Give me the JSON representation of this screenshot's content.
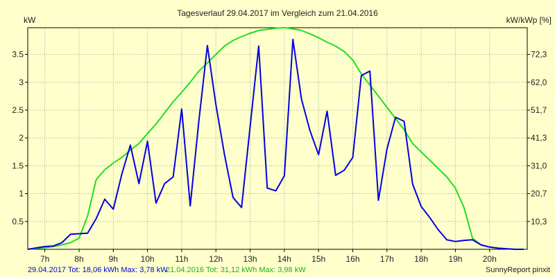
{
  "chart_data": {
    "type": "line",
    "title": "Tagesverlauf 29.04.2017 im Vergleich zum 21.04.2016",
    "ylabel_left": "kW",
    "ylabel_right": "kW/kWp [%]",
    "xlim": [
      6.5,
      21.1
    ],
    "ylim": [
      0,
      3.98
    ],
    "x_ticks": [
      7,
      8,
      9,
      10,
      11,
      12,
      13,
      14,
      15,
      16,
      17,
      18,
      19,
      20
    ],
    "x_tick_labels": [
      "7h",
      "8h",
      "9h",
      "10h",
      "11h",
      "12h",
      "13h",
      "14h",
      "15h",
      "16h",
      "17h",
      "18h",
      "19h",
      "20h"
    ],
    "y_ticks": [
      0.5,
      1,
      1.5,
      2,
      2.5,
      3,
      3.5
    ],
    "y_tick_labels": [
      "0.5",
      "1",
      "1.5",
      "2",
      "2.5",
      "3",
      "3.5"
    ],
    "y2_ticks": [
      0.5,
      1,
      1.5,
      2,
      2.5,
      3,
      3.5
    ],
    "y2_tick_labels": [
      "10,3",
      "20,7",
      "31,0",
      "41,3",
      "51,7",
      "62,0",
      "72,3"
    ],
    "grid": true,
    "series": [
      {
        "name": "29.04.2017",
        "color": "#0000e0",
        "x": [
          6.5,
          7.0,
          7.25,
          7.5,
          7.75,
          8.0,
          8.25,
          8.5,
          8.75,
          9.0,
          9.25,
          9.5,
          9.75,
          10.0,
          10.25,
          10.5,
          10.75,
          11.0,
          11.25,
          11.5,
          11.75,
          12.0,
          12.25,
          12.5,
          12.75,
          13.0,
          13.25,
          13.5,
          13.75,
          14.0,
          14.25,
          14.5,
          14.75,
          15.0,
          15.25,
          15.5,
          15.75,
          16.0,
          16.25,
          16.5,
          16.75,
          17.0,
          17.25,
          17.5,
          17.75,
          18.0,
          18.25,
          18.5,
          18.75,
          19.0,
          19.25,
          19.5,
          19.75,
          20.0,
          20.25,
          20.5,
          20.75,
          21.0
        ],
        "values": [
          0.0,
          0.05,
          0.06,
          0.12,
          0.27,
          0.28,
          0.29,
          0.55,
          0.9,
          0.72,
          1.35,
          1.87,
          1.18,
          1.94,
          0.83,
          1.18,
          1.3,
          2.52,
          0.78,
          2.3,
          3.66,
          2.6,
          1.7,
          0.93,
          0.75,
          2.2,
          3.65,
          1.1,
          1.05,
          1.32,
          3.77,
          2.7,
          2.13,
          1.7,
          2.48,
          1.33,
          1.42,
          1.65,
          3.12,
          3.2,
          0.88,
          1.8,
          2.37,
          2.3,
          1.17,
          0.77,
          0.57,
          0.35,
          0.17,
          0.14,
          0.16,
          0.17,
          0.08,
          0.04,
          0.02,
          0.01,
          0.0,
          0.0
        ]
      },
      {
        "name": "21.04.2016",
        "color": "#22dd22",
        "x": [
          6.5,
          7.0,
          7.25,
          7.5,
          7.75,
          8.0,
          8.25,
          8.5,
          8.75,
          9.0,
          9.25,
          9.5,
          9.75,
          10.0,
          10.25,
          10.5,
          10.75,
          11.0,
          11.25,
          11.5,
          11.75,
          12.0,
          12.25,
          12.5,
          12.75,
          13.0,
          13.25,
          13.5,
          13.75,
          14.0,
          14.25,
          14.5,
          14.75,
          15.0,
          15.25,
          15.5,
          15.75,
          16.0,
          16.25,
          16.5,
          16.75,
          17.0,
          17.25,
          17.5,
          17.75,
          18.0,
          18.25,
          18.5,
          18.75,
          19.0,
          19.25,
          19.5,
          19.75,
          20.0,
          20.25,
          20.5,
          20.75,
          21.0
        ],
        "values": [
          0.0,
          0.03,
          0.05,
          0.08,
          0.12,
          0.2,
          0.6,
          1.25,
          1.43,
          1.55,
          1.65,
          1.78,
          1.9,
          2.08,
          2.25,
          2.45,
          2.65,
          2.82,
          3.0,
          3.2,
          3.35,
          3.5,
          3.65,
          3.75,
          3.82,
          3.88,
          3.93,
          3.95,
          3.97,
          3.98,
          3.96,
          3.93,
          3.87,
          3.8,
          3.72,
          3.65,
          3.55,
          3.4,
          3.15,
          2.95,
          2.75,
          2.55,
          2.35,
          2.15,
          1.9,
          1.75,
          1.6,
          1.45,
          1.3,
          1.1,
          0.75,
          0.2,
          0.08,
          0.04,
          0.02,
          0.01,
          0.0,
          0.0
        ]
      }
    ]
  },
  "footer": {
    "series1_text": "29.04.2017 Tot: 18,06 kWh Max: 3,78 kW",
    "series2_text": "21.04.2016 Tot: 31,12 kWh Max: 3,98 kW",
    "credit": "SunnyReport pinxit"
  }
}
